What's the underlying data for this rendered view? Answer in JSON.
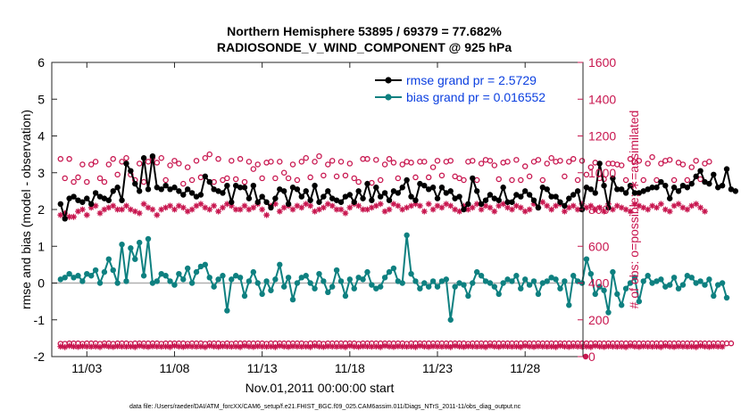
{
  "chart_data": {
    "type": "line",
    "title_line1": "Northern Hemisphere 53895 / 69379 = 77.682%",
    "title_line2": "RADIOSONDE_V_WIND_COMPONENT @ 925 hPa",
    "xlabel": "Nov.01,2011 00:00:00 start",
    "ylabel": "rmse and bias (model - observation)",
    "y2label": "# of obs: o=possible; ∗=assimilated",
    "xlim": [
      1,
      31.3
    ],
    "ylim": [
      -2,
      6
    ],
    "y2lim": [
      0,
      1600
    ],
    "x_ticks": [
      3,
      8,
      13,
      18,
      23,
      28
    ],
    "x_tick_labels": [
      "11/03",
      "11/08",
      "11/13",
      "11/18",
      "11/23",
      "11/28"
    ],
    "y_ticks": [
      "-2",
      "-1",
      "0",
      "1",
      "2",
      "3",
      "4",
      "5",
      "6"
    ],
    "y2_ticks": [
      "0",
      "200",
      "400",
      "600",
      "800",
      "1000",
      "1200",
      "1400",
      "1600"
    ],
    "legend": [
      "rmse grand pr = 2.5729",
      "bias grand pr = 0.016552"
    ],
    "colors": {
      "rmse": "#000000",
      "bias": "#0e8080",
      "obs": "#c8164f",
      "zero": "#b0b0b0",
      "legend_text": "#0b3fe0"
    },
    "time_start": 1.5,
    "time_step": 0.25,
    "series": [
      {
        "name": "rmse",
        "values": [
          2.15,
          1.75,
          2.3,
          2.35,
          2.25,
          2.2,
          2.3,
          2.15,
          2.45,
          2.35,
          2.3,
          2.25,
          2.5,
          2.6,
          2.25,
          3.25,
          3.05,
          2.7,
          2.5,
          3.4,
          2.55,
          3.45,
          2.6,
          2.55,
          2.65,
          2.55,
          2.6,
          2.5,
          2.4,
          2.55,
          2.45,
          2.35,
          2.4,
          2.9,
          2.75,
          2.55,
          2.5,
          2.45,
          2.65,
          2.2,
          2.65,
          2.6,
          2.6,
          2.3,
          2.65,
          2.2,
          2.35,
          2.2,
          2.05,
          2.3,
          2.55,
          2.5,
          2.15,
          2.6,
          2.55,
          2.35,
          2.5,
          2.25,
          2.65,
          2.2,
          2.35,
          2.5,
          2.3,
          2.25,
          2.2,
          2.35,
          2.4,
          2.2,
          2.5,
          2.3,
          2.7,
          2.25,
          2.6,
          2.35,
          2.45,
          2.25,
          2.5,
          2.45,
          2.6,
          2.8,
          2.35,
          2.25,
          2.7,
          2.65,
          2.55,
          2.6,
          2.3,
          2.6,
          2.45,
          2.5,
          2.3,
          2.35,
          2.0,
          2.15,
          2.85,
          2.5,
          2.15,
          2.25,
          2.4,
          2.3,
          2.25,
          2.6,
          2.2,
          2.2,
          2.4,
          2.35,
          2.5,
          2.4,
          2.25,
          2.05,
          2.6,
          2.55,
          2.35,
          2.35,
          2.2,
          2.1,
          2.3,
          2.4,
          2.5,
          2.0,
          2.6,
          2.55,
          2.45,
          3.25,
          2.65,
          2.05,
          2.85,
          2.55,
          2.55,
          2.45,
          2.65,
          2.45,
          2.45,
          2.5,
          2.55,
          2.6,
          2.6,
          2.75,
          2.65,
          2.3,
          2.6,
          2.5,
          2.65,
          2.6,
          2.7,
          2.9,
          3.05,
          2.75,
          2.7,
          2.95,
          2.6,
          2.65,
          3.1,
          2.55,
          2.5
        ]
      },
      {
        "name": "bias",
        "values": [
          0.1,
          0.15,
          0.25,
          0.15,
          0.2,
          0.05,
          0.25,
          0.2,
          0.35,
          0.0,
          0.3,
          0.65,
          0.35,
          0.0,
          1.05,
          0.05,
          0.95,
          0.65,
          1.1,
          0.2,
          1.2,
          0.0,
          0.05,
          0.25,
          0.2,
          0.05,
          -0.05,
          0.25,
          0.1,
          0.4,
          0.0,
          0.3,
          0.45,
          0.5,
          0.15,
          -0.1,
          0.1,
          0.2,
          -0.75,
          0.1,
          0.2,
          0.15,
          -0.35,
          0.05,
          0.3,
          0.0,
          -0.3,
          0.05,
          -0.2,
          0.1,
          0.5,
          -0.1,
          0.15,
          -0.45,
          0.0,
          0.15,
          0.2,
          0.0,
          -0.15,
          0.25,
          0.05,
          -0.25,
          -0.1,
          0.35,
          0.05,
          -0.35,
          0.1,
          -0.15,
          0.15,
          0.1,
          0.3,
          -0.05,
          -0.15,
          -0.1,
          0.15,
          0.3,
          0.4,
          0.05,
          0.0,
          1.3,
          0.25,
          0.05,
          -0.15,
          0.0,
          -0.1,
          0.05,
          -0.1,
          0.05,
          0.1,
          -1.0,
          -0.1,
          0.0,
          -0.05,
          -0.35,
          0.0,
          0.3,
          0.2,
          0.05,
          0.0,
          -0.1,
          -0.3,
          0.0,
          0.1,
          0.05,
          0.2,
          -0.15,
          0.1,
          -0.05,
          0.05,
          -0.3,
          0.0,
          0.05,
          0.15,
          0.1,
          -0.15,
          0.05,
          -0.6,
          0.2,
          0.05,
          0.0,
          0.65,
          0.25,
          -0.3,
          -0.1,
          -0.2,
          -0.8,
          0.3,
          -0.3,
          -0.6,
          -0.15,
          0.0,
          0.15,
          -0.5,
          0.05,
          0.2,
          0.0,
          0.05,
          0.1,
          -0.1,
          -0.05,
          0.15,
          -0.15,
          -0.05,
          0.2,
          0.15,
          0.0,
          0.05,
          -0.05,
          0.1,
          -0.35,
          -0.05,
          0.0,
          -0.4
        ]
      },
      {
        "name": "possible_obs",
        "values": [
          1075,
          970,
          1075,
          950,
          975,
          1045,
          950,
          1045,
          1060,
          970,
          950,
          1045,
          1075,
          990,
          1060,
          1080,
          990,
          960,
          1050,
          950,
          1060,
          1080,
          1055,
          1080,
          960,
          1040,
          1065,
          1050,
          940,
          1030,
          960,
          1065,
          975,
          1080,
          1100,
          950,
          1075,
          960,
          970,
          1065,
          965,
          1075,
          950,
          1060,
          1020,
          1045,
          970,
          1055,
          1060,
          970,
          1060,
          1000,
          970,
          1045,
          960,
          1060,
          1080,
          975,
          1060,
          1090,
          985,
          1045,
          1065,
          980,
          1060,
          985,
          1050,
          970,
          950,
          1075,
          1075,
          945,
          1070,
          960,
          1045,
          1075,
          1055,
          970,
          1045,
          1060,
          1055,
          975,
          1060,
          1060,
          975,
          1030,
          1065,
          985,
          1060,
          1065,
          980,
          970,
          960,
          1060,
          1065,
          960,
          1050,
          1070,
          1065,
          1040,
          965,
          1055,
          1060,
          960,
          1070,
          960,
          1035,
          980,
          1060,
          1070,
          960,
          1050,
          1080,
          1060,
          1065,
          980,
          1060,
          1075,
          960,
          1065,
          990,
          1030,
          1055,
          970,
          965,
          1050,
          1050,
          1045,
          1040,
          960,
          1075,
          1060,
          1065,
          960,
          1050,
          1085,
          960,
          1050,
          1065,
          1070,
          960,
          1055,
          1045,
          960,
          1030,
          1065,
          965,
          1050,
          1060
        ]
      },
      {
        "name": "assimilated_obs",
        "values": [
          770,
          780,
          760,
          760,
          790,
          800,
          770,
          810,
          820,
          780,
          800,
          810,
          820,
          800,
          800,
          820,
          800,
          790,
          780,
          830,
          810,
          800,
          770,
          800,
          810,
          820,
          800,
          820,
          810,
          790,
          800,
          820,
          830,
          810,
          800,
          820,
          790,
          810,
          830,
          820,
          800,
          800,
          820,
          800,
          810,
          830,
          800,
          770,
          820,
          830,
          790,
          810,
          820,
          800,
          820,
          810,
          830,
          820,
          790,
          800,
          810,
          830,
          820,
          800,
          800,
          780,
          810,
          830,
          820,
          800,
          800,
          810,
          820,
          830,
          790,
          800,
          830,
          820,
          800,
          810,
          820,
          830,
          820,
          790,
          830,
          800,
          820,
          810,
          830,
          820,
          800,
          790,
          820,
          800,
          810,
          830,
          800,
          820,
          810,
          790,
          820,
          830,
          810,
          800,
          820,
          810,
          790,
          800,
          830,
          810,
          840,
          820,
          800,
          820,
          830,
          790,
          810,
          820,
          800,
          830,
          810,
          820,
          800,
          810,
          790,
          830,
          800,
          820,
          810,
          800,
          790,
          830,
          820,
          810,
          800,
          820,
          810,
          830,
          800,
          790,
          820,
          830,
          810,
          800,
          820,
          830,
          810,
          790
        ]
      },
      {
        "name": "possible_obs_low",
        "values": [
          70,
          70,
          72,
          72,
          72,
          70,
          72,
          72,
          72,
          70,
          72,
          72,
          70,
          72,
          72,
          72,
          70,
          72,
          72,
          72,
          72,
          72,
          72,
          70,
          72,
          72,
          72,
          72,
          72,
          70,
          72,
          72,
          72,
          70,
          72,
          72,
          72,
          70,
          72,
          70,
          72,
          72,
          72,
          72,
          72,
          72,
          72,
          70,
          72,
          72,
          72,
          72,
          72,
          72,
          72,
          72,
          70,
          72,
          72,
          72,
          70,
          72,
          72,
          72,
          72,
          72,
          72,
          72,
          70,
          72,
          72,
          72,
          72,
          72,
          72,
          72,
          72,
          72,
          72,
          70,
          72,
          72,
          72,
          72,
          72,
          72,
          72,
          72,
          72,
          72,
          72,
          72,
          72,
          70,
          72,
          72,
          72,
          72,
          72,
          72,
          72,
          72,
          72,
          72,
          72,
          72,
          72,
          72,
          72,
          72,
          72,
          72,
          72,
          72,
          72,
          72,
          72,
          72,
          72,
          72,
          72,
          72,
          72,
          72,
          72,
          72,
          72,
          72,
          72,
          72,
          72,
          72,
          72,
          72,
          72,
          72,
          72,
          72,
          72,
          72,
          72,
          72,
          72,
          72,
          72,
          72,
          72,
          72,
          72,
          72,
          72,
          72,
          72,
          72
        ]
      },
      {
        "name": "assimilated_obs_low",
        "values": [
          55,
          52,
          58,
          55,
          53,
          56,
          55,
          54,
          55,
          52,
          58,
          55,
          53,
          56,
          55,
          54,
          55,
          52,
          58,
          55,
          53,
          56,
          55,
          54,
          55,
          52,
          58,
          55,
          53,
          56,
          55,
          54,
          55,
          52,
          58,
          55,
          53,
          56,
          55,
          54,
          55,
          52,
          58,
          55,
          53,
          56,
          55,
          54,
          55,
          52,
          58,
          55,
          53,
          56,
          55,
          54,
          55,
          52,
          58,
          55,
          53,
          56,
          55,
          54,
          55,
          52,
          58,
          55,
          53,
          56,
          55,
          54,
          55,
          52,
          58,
          55,
          53,
          56,
          55,
          54,
          55,
          52,
          58,
          55,
          53,
          56,
          55,
          54,
          55,
          52,
          58,
          55,
          53,
          56,
          55,
          54,
          55,
          52,
          58,
          55,
          53,
          56,
          55,
          54,
          55,
          52,
          58,
          55,
          53,
          56,
          55,
          54,
          55,
          52,
          58,
          55,
          53,
          56,
          55,
          54,
          55,
          52,
          58,
          55,
          53,
          56,
          55,
          54,
          55,
          52,
          58,
          55,
          53,
          56,
          55,
          54,
          55,
          52,
          58,
          55,
          53,
          56,
          55,
          54,
          55,
          52,
          58,
          55,
          53,
          56,
          55,
          54
        ]
      }
    ]
  },
  "footnote": "data file: /Users/raeder/DAI/ATM_forcXX/CAM6_setup/f.e21.FHIST_BGC.f09_025.CAM6assim.011/Diags_NTrS_2011-11/obs_diag_output.nc"
}
